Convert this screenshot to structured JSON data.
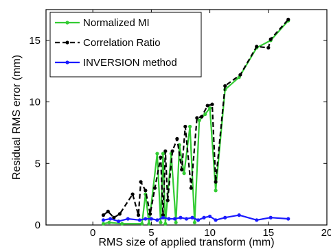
{
  "chart_data": {
    "type": "line",
    "title": "",
    "xlabel": "RMS size of applied transform (mm)",
    "ylabel": "Residual RMS error (mm)",
    "xlim": [
      -4,
      20
    ],
    "ylim": [
      0,
      17.5
    ],
    "xticks": [
      0,
      5,
      10,
      15,
      20
    ],
    "yticks": [
      0,
      5,
      10,
      15
    ],
    "grid": false,
    "legend_position": "top-left",
    "series": [
      {
        "name": "Normalized MI",
        "color": "#33cc33",
        "line_style": "solid",
        "x": [
          0.9,
          1.4,
          2.5,
          4.2,
          4.5,
          4.8,
          5.5,
          5.8,
          6.0,
          6.2,
          6.7,
          7.1,
          7.4,
          7.8,
          8.3,
          8.7,
          9.1,
          9.6,
          10.0,
          10.5,
          11.3,
          12.5,
          14.0,
          15.2,
          16.7
        ],
        "y": [
          0.1,
          0.2,
          0.1,
          0.1,
          2.5,
          0.1,
          5.8,
          0.2,
          5.8,
          0.1,
          5.8,
          0.2,
          6.5,
          4.2,
          8.0,
          0.2,
          8.5,
          9.0,
          9.5,
          2.8,
          11.0,
          12.0,
          14.4,
          15.0,
          16.6
        ]
      },
      {
        "name": "Correlation Ratio",
        "color": "#000000",
        "line_style": "dashed",
        "x": [
          0.9,
          1.3,
          1.8,
          2.3,
          3.4,
          3.9,
          4.1,
          4.5,
          4.9,
          5.3,
          5.8,
          6.0,
          6.2,
          6.4,
          6.8,
          7.2,
          7.6,
          7.9,
          8.4,
          8.9,
          9.3,
          9.8,
          10.2,
          10.5,
          11.3,
          12.6,
          14.0,
          15.0,
          15.2,
          16.7
        ],
        "y": [
          0.8,
          1.1,
          0.6,
          0.9,
          2.5,
          0.8,
          3.5,
          2.8,
          0.9,
          3.0,
          5.5,
          0.8,
          6.0,
          2.0,
          6.0,
          7.0,
          4.5,
          8.0,
          3.0,
          8.7,
          8.8,
          9.7,
          9.8,
          3.5,
          11.3,
          12.2,
          14.5,
          14.4,
          15.1,
          16.7
        ]
      },
      {
        "name": "INVERSION method",
        "color": "#1a1aff",
        "line_style": "solid",
        "x": [
          0.9,
          1.5,
          2.2,
          3.0,
          4.0,
          4.5,
          5.0,
          5.5,
          6.0,
          6.5,
          7.0,
          7.5,
          8.0,
          8.5,
          9.0,
          9.5,
          10.0,
          10.5,
          11.3,
          12.5,
          14.0,
          15.2,
          16.7
        ],
        "y": [
          0.4,
          0.5,
          0.3,
          0.5,
          0.4,
          0.5,
          0.5,
          0.4,
          0.6,
          0.5,
          0.5,
          0.6,
          0.5,
          0.6,
          0.4,
          0.6,
          0.7,
          0.4,
          0.6,
          0.8,
          0.4,
          0.6,
          0.5
        ]
      }
    ]
  }
}
